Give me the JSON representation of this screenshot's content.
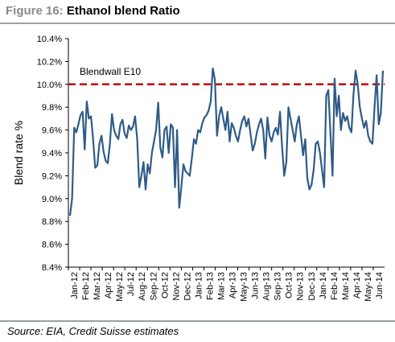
{
  "figure": {
    "number": "Figure 16:",
    "title": "Ethanol blend Ratio",
    "source": "Source: EIA, Credit Suisse estimates"
  },
  "colors": {
    "series": "#2f5b87",
    "reference": "#c00000",
    "axis": "#000000",
    "header_rule": "#9aa0a6",
    "figure_number": "#8a8a8a"
  },
  "chart_data": {
    "type": "line",
    "title": "",
    "ylabel": "Blend rate %",
    "xlabel": "",
    "ylim": [
      8.4,
      10.4
    ],
    "y_ticks": [
      "8.4%",
      "8.6%",
      "8.8%",
      "9.0%",
      "9.2%",
      "9.4%",
      "9.6%",
      "9.8%",
      "10.0%",
      "10.2%",
      "10.4%"
    ],
    "x_labels": [
      "Jan-12",
      "Feb-12",
      "Mar-12",
      "Apr-12",
      "May-12",
      "Jul-12",
      "Aug-12",
      "Sep-12",
      "Oct-12",
      "Nov-12",
      "Dec-12",
      "Jan-13",
      "Feb-13",
      "Mar-13",
      "Apr-13",
      "May-13",
      "Jun-13",
      "Aug-13",
      "Sep-13",
      "Oct-13",
      "Nov-13",
      "Dec-13",
      "Jan-14",
      "Feb-14",
      "Mar-14",
      "Apr-14",
      "May-14",
      "Jun-14"
    ],
    "grid": false,
    "reference_line": {
      "label": "Blendwall E10",
      "value": 10.0
    },
    "series": [
      {
        "values": [
          8.85,
          9.0,
          9.62,
          9.58,
          9.65,
          9.73,
          9.76,
          9.43,
          9.85,
          9.7,
          9.72,
          9.52,
          9.27,
          9.29,
          9.48,
          9.55,
          9.41,
          9.33,
          9.31,
          9.48,
          9.74,
          9.6,
          9.55,
          9.52,
          9.65,
          9.69,
          9.57,
          9.53,
          9.64,
          9.6,
          9.63,
          9.72,
          9.52,
          9.1,
          9.2,
          9.32,
          9.08,
          9.3,
          9.22,
          9.4,
          9.5,
          9.6,
          9.84,
          9.45,
          9.36,
          9.6,
          9.63,
          9.4,
          9.65,
          9.62,
          9.1,
          9.6,
          8.92,
          9.1,
          9.3,
          9.24,
          9.22,
          9.2,
          9.35,
          9.52,
          9.48,
          9.6,
          9.58,
          9.66,
          9.71,
          9.73,
          9.77,
          9.85,
          10.14,
          10.04,
          9.55,
          9.72,
          9.8,
          9.7,
          9.6,
          9.76,
          9.5,
          9.66,
          9.62,
          9.55,
          9.5,
          9.6,
          9.68,
          9.72,
          9.63,
          9.7,
          9.56,
          9.42,
          9.48,
          9.58,
          9.65,
          9.7,
          9.6,
          9.35,
          9.71,
          9.55,
          9.5,
          9.58,
          9.62,
          9.56,
          9.76,
          9.45,
          9.2,
          9.32,
          9.8,
          9.7,
          9.6,
          9.5,
          9.65,
          9.72,
          9.55,
          9.38,
          9.52,
          9.18,
          9.08,
          9.12,
          9.25,
          9.48,
          9.5,
          9.4,
          9.25,
          9.1,
          9.9,
          9.95,
          9.58,
          9.2,
          10.05,
          9.72,
          9.9,
          9.6,
          9.75,
          9.68,
          9.72,
          9.62,
          9.58,
          9.92,
          10.12,
          10.0,
          9.8,
          9.7,
          9.62,
          9.68,
          9.55,
          9.5,
          9.48,
          9.8,
          10.08,
          9.65,
          9.75,
          10.12
        ]
      }
    ]
  }
}
